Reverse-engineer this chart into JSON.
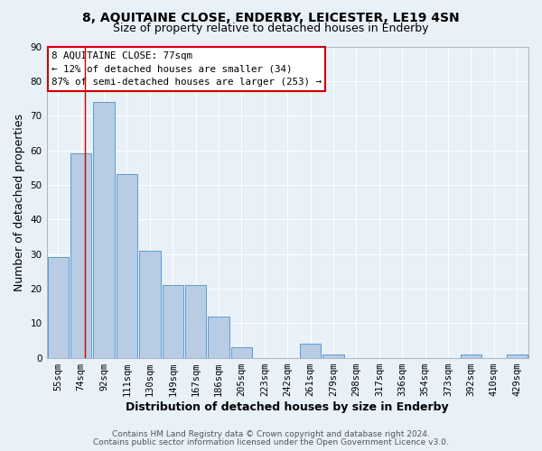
{
  "title": "8, AQUITAINE CLOSE, ENDERBY, LEICESTER, LE19 4SN",
  "subtitle": "Size of property relative to detached houses in Enderby",
  "xlabel": "Distribution of detached houses by size in Enderby",
  "ylabel": "Number of detached properties",
  "bin_labels": [
    "55sqm",
    "74sqm",
    "92sqm",
    "111sqm",
    "130sqm",
    "149sqm",
    "167sqm",
    "186sqm",
    "205sqm",
    "223sqm",
    "242sqm",
    "261sqm",
    "279sqm",
    "298sqm",
    "317sqm",
    "336sqm",
    "354sqm",
    "373sqm",
    "392sqm",
    "410sqm",
    "429sqm"
  ],
  "bar_values": [
    29,
    59,
    74,
    53,
    31,
    21,
    21,
    12,
    3,
    0,
    0,
    4,
    1,
    0,
    0,
    0,
    0,
    0,
    1,
    0,
    1
  ],
  "bar_color": "#b8cce4",
  "bar_edge_color": "#5b9bd5",
  "marker_color": "#cc0000",
  "ylim": [
    0,
    90
  ],
  "yticks": [
    0,
    10,
    20,
    30,
    40,
    50,
    60,
    70,
    80,
    90
  ],
  "annotation_box_text": "8 AQUITAINE CLOSE: 77sqm\n← 12% of detached houses are smaller (34)\n87% of semi-detached houses are larger (253) →",
  "footer_line1": "Contains HM Land Registry data © Crown copyright and database right 2024.",
  "footer_line2": "Contains public sector information licensed under the Open Government Licence v3.0.",
  "background_color": "#e8f0f8",
  "grid_color": "#ffffff",
  "title_fontsize": 10,
  "subtitle_fontsize": 9,
  "axis_label_fontsize": 9,
  "tick_label_fontsize": 7.5,
  "footer_fontsize": 6.5
}
